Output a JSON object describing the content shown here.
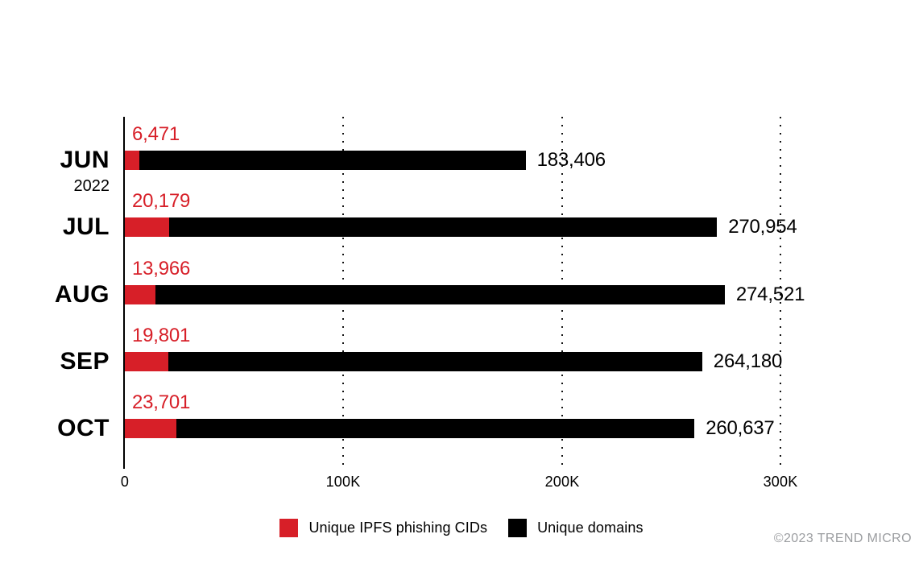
{
  "chart_data": {
    "type": "bar",
    "orientation": "horizontal",
    "title": "",
    "categories": [
      "JUN",
      "JUL",
      "AUG",
      "SEP",
      "OCT"
    ],
    "year_label": "2022",
    "series": [
      {
        "name": "Unique IPFS phishing CIDs",
        "color": "#d71f28",
        "values": [
          6471,
          20179,
          13966,
          19801,
          23701
        ],
        "value_labels": [
          "6,471",
          "20,179",
          "13,966",
          "19,801",
          "23,701"
        ]
      },
      {
        "name": "Unique domains",
        "color": "#000000",
        "values": [
          183406,
          270954,
          274521,
          264180,
          260637
        ],
        "value_labels": [
          "183,406",
          "270,954",
          "274,521",
          "264,180",
          "260,637"
        ]
      }
    ],
    "xlim": [
      0,
      300000
    ],
    "x_tick_values": [
      0,
      100000,
      200000,
      300000
    ],
    "x_tick_labels": [
      "0",
      "100K",
      "200K",
      "300K"
    ],
    "grid": "vertical-dotted",
    "legend_position": "bottom-center"
  },
  "footer": {
    "copyright": "©2023 TREND MICRO",
    "copyright_color": "#9b9da0"
  }
}
